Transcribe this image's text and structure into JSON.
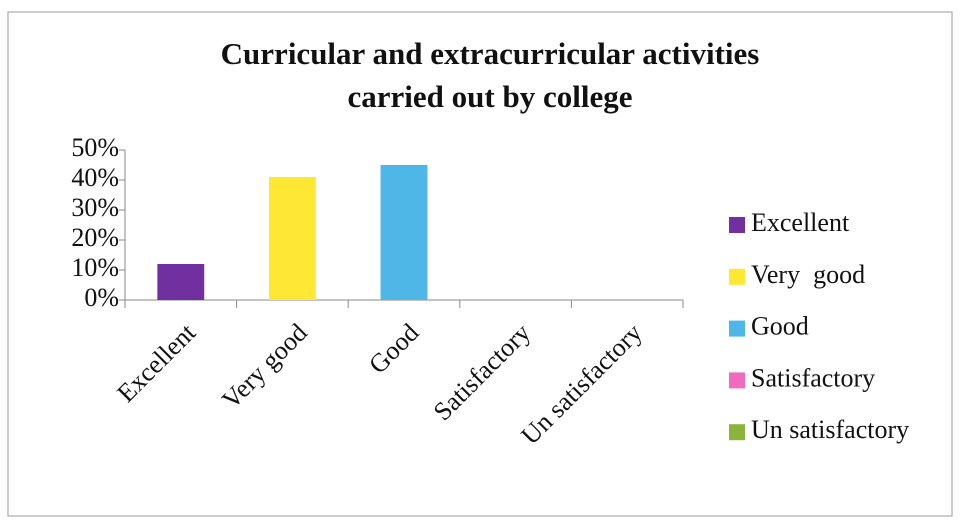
{
  "chart_data": {
    "type": "bar",
    "title": "Curricular and extracurricular activities",
    "subtitle": "carried out by college",
    "categories": [
      "Excellent",
      "Very good",
      "Good",
      "Satisfactory",
      "Un satisfactory"
    ],
    "values": [
      12,
      41,
      45,
      0,
      0
    ],
    "colors": [
      "#7030a0",
      "#ffe733",
      "#4fb6e8",
      "#f06bc0",
      "#8cb43c"
    ],
    "legend": [
      "Excellent",
      "Very  good",
      "Good",
      "Satisfactory",
      "Un satisfactory"
    ],
    "ylim": [
      0,
      50
    ],
    "yticks": [
      {
        "value": 0,
        "label": "0%"
      },
      {
        "value": 10,
        "label": "10%"
      },
      {
        "value": 20,
        "label": "20%"
      },
      {
        "value": 30,
        "label": "30%"
      },
      {
        "value": 40,
        "label": "40%"
      },
      {
        "value": 50,
        "label": "50%"
      }
    ],
    "legend_position": "right"
  }
}
